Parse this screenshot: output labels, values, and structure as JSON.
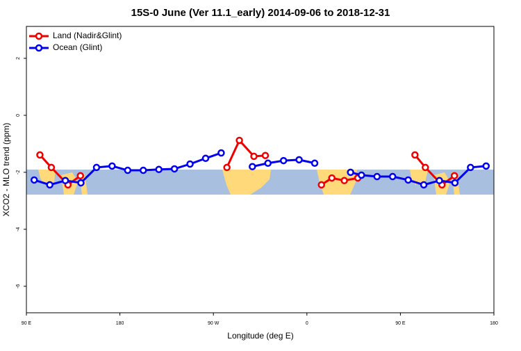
{
  "chart_data": {
    "type": "line",
    "title": "15S-0 June (Ver 11.1_early)   2014-09-06 to 2018-12-31",
    "x_label": "Longitude (deg E)",
    "y_label": "XCO2 - MLO trend (ppm)",
    "xlim": [
      90,
      540
    ],
    "xticks": [
      {
        "value": 90,
        "label": "90 E"
      },
      180,
      {
        "value": 270,
        "label": "90 W"
      },
      {
        "value": 360,
        "label": "0"
      },
      {
        "value": 450,
        "label": "90 E"
      },
      {
        "value": 540,
        "label": "180"
      }
    ],
    "ylim": [
      -6.93,
      3.12
    ],
    "yticks": [
      -6,
      -4,
      -2,
      0,
      2
    ],
    "legend": "top-left",
    "series": [
      {
        "name": "Land (Nadir&Glint)",
        "color": "#ee0000",
        "x": [
          103,
          114,
          130,
          142,
          null,
          283,
          295,
          309,
          320,
          null,
          374,
          384,
          396,
          409,
          null,
          464,
          474,
          490,
          502
        ],
        "values": [
          -1.39,
          -1.83,
          -2.44,
          -2.12,
          null,
          -1.83,
          -0.88,
          -1.44,
          -1.41,
          null,
          -2.44,
          -2.2,
          -2.29,
          -2.2,
          null,
          -1.39,
          -1.83,
          -2.44,
          -2.12
        ]
      },
      {
        "name": "Ocean (Glint)",
        "color": "#0000ee",
        "x": [
          97.5,
          112.5,
          127.5,
          142.5,
          157.5,
          172.5,
          187.5,
          202.5,
          217.5,
          232.5,
          247.5,
          262.5,
          277.5,
          null,
          307.5,
          322.5,
          337.5,
          352.5,
          367.5,
          null,
          402,
          412.5,
          427.5,
          442.5,
          457.5,
          472.5,
          487.5,
          502.5,
          517.5,
          532.5
        ],
        "values": [
          -2.27,
          -2.44,
          -2.29,
          -2.37,
          -1.83,
          -1.78,
          -1.93,
          -1.93,
          -1.9,
          -1.88,
          -1.71,
          -1.51,
          -1.32,
          null,
          -1.8,
          -1.68,
          -1.59,
          -1.56,
          -1.68,
          null,
          -2.0,
          -2.1,
          -2.15,
          -2.15,
          -2.27,
          -2.44,
          -2.29,
          -2.37,
          -1.83,
          -1.78
        ]
      }
    ]
  }
}
